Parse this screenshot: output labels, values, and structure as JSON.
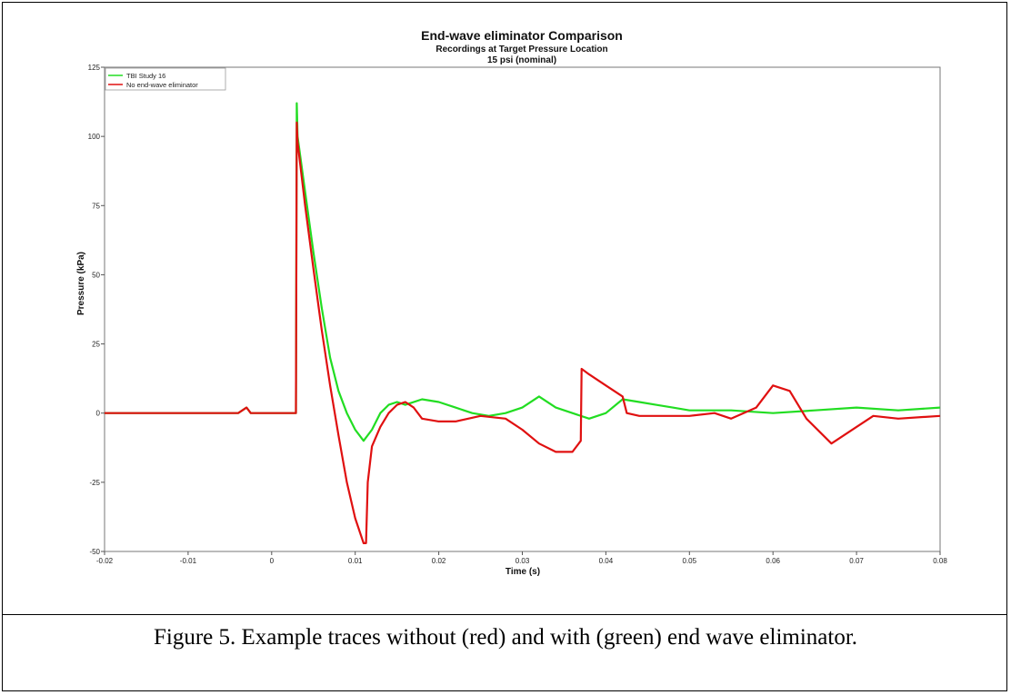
{
  "chart_data": {
    "type": "line",
    "title": "End-wave eliminator Comparison",
    "subtitle_lines": [
      "Recordings at Target Pressure Location",
      "15 psi (nominal)"
    ],
    "xlabel": "Time (s)",
    "ylabel": "Pressure (kPa)",
    "xlim": [
      -0.02,
      0.08
    ],
    "ylim": [
      -50,
      125
    ],
    "x_ticks": [
      -0.02,
      -0.01,
      0,
      0.01,
      0.02,
      0.03,
      0.04,
      0.05,
      0.06,
      0.07,
      0.08
    ],
    "x_tick_labels": [
      "-0.02",
      "-0.01",
      "0",
      "0.01",
      "0.02",
      "0.03",
      "0.04",
      "0.05",
      "0.06",
      "0.07",
      "0.08"
    ],
    "y_ticks": [
      -50,
      -25,
      0,
      25,
      50,
      75,
      100,
      125
    ],
    "y_tick_labels": [
      "-50",
      "-25",
      "0",
      "25",
      "50",
      "75",
      "100",
      "125"
    ],
    "grid": true,
    "legend_position": "top-left",
    "series": [
      {
        "name": "TBI Study 16",
        "color": "#22dd22",
        "x": [
          -0.02,
          -0.004,
          -0.003,
          -0.0025,
          0.0029,
          0.003,
          0.0031,
          0.004,
          0.005,
          0.006,
          0.007,
          0.008,
          0.009,
          0.01,
          0.011,
          0.012,
          0.013,
          0.014,
          0.015,
          0.016,
          0.018,
          0.02,
          0.022,
          0.024,
          0.026,
          0.028,
          0.03,
          0.032,
          0.034,
          0.036,
          0.038,
          0.04,
          0.042,
          0.044,
          0.046,
          0.048,
          0.05,
          0.055,
          0.06,
          0.065,
          0.07,
          0.075,
          0.08
        ],
        "y": [
          0,
          0,
          2,
          0,
          0,
          112,
          100,
          80,
          58,
          38,
          20,
          8,
          0,
          -6,
          -10,
          -6,
          0,
          3,
          4,
          3,
          5,
          4,
          2,
          0,
          -1,
          0,
          2,
          6,
          2,
          0,
          -2,
          0,
          5,
          4,
          3,
          2,
          1,
          1,
          0,
          1,
          2,
          1,
          2
        ]
      },
      {
        "name": "No end-wave eliminator",
        "color": "#e01010",
        "x": [
          -0.02,
          -0.004,
          -0.003,
          -0.0025,
          0.0029,
          0.003,
          0.0031,
          0.004,
          0.005,
          0.006,
          0.007,
          0.008,
          0.009,
          0.01,
          0.011,
          0.0113,
          0.0115,
          0.012,
          0.013,
          0.014,
          0.015,
          0.016,
          0.017,
          0.018,
          0.02,
          0.022,
          0.025,
          0.028,
          0.03,
          0.032,
          0.034,
          0.036,
          0.037,
          0.0371,
          0.038,
          0.04,
          0.042,
          0.0425,
          0.044,
          0.046,
          0.048,
          0.05,
          0.053,
          0.055,
          0.058,
          0.06,
          0.062,
          0.064,
          0.067,
          0.07,
          0.072,
          0.075,
          0.08
        ],
        "y": [
          0,
          0,
          2,
          0,
          0,
          105,
          98,
          75,
          52,
          30,
          10,
          -8,
          -25,
          -38,
          -47,
          -47,
          -25,
          -12,
          -5,
          0,
          3,
          4,
          2,
          -2,
          -3,
          -3,
          -1,
          -2,
          -6,
          -11,
          -14,
          -14,
          -10,
          16,
          14,
          10,
          6,
          0,
          -1,
          -1,
          -1,
          -1,
          0,
          -2,
          2,
          10,
          8,
          -2,
          -11,
          -5,
          -1,
          -2,
          -1
        ]
      }
    ]
  },
  "caption": "Figure 5. Example traces without (red) and with (green) end wave eliminator."
}
